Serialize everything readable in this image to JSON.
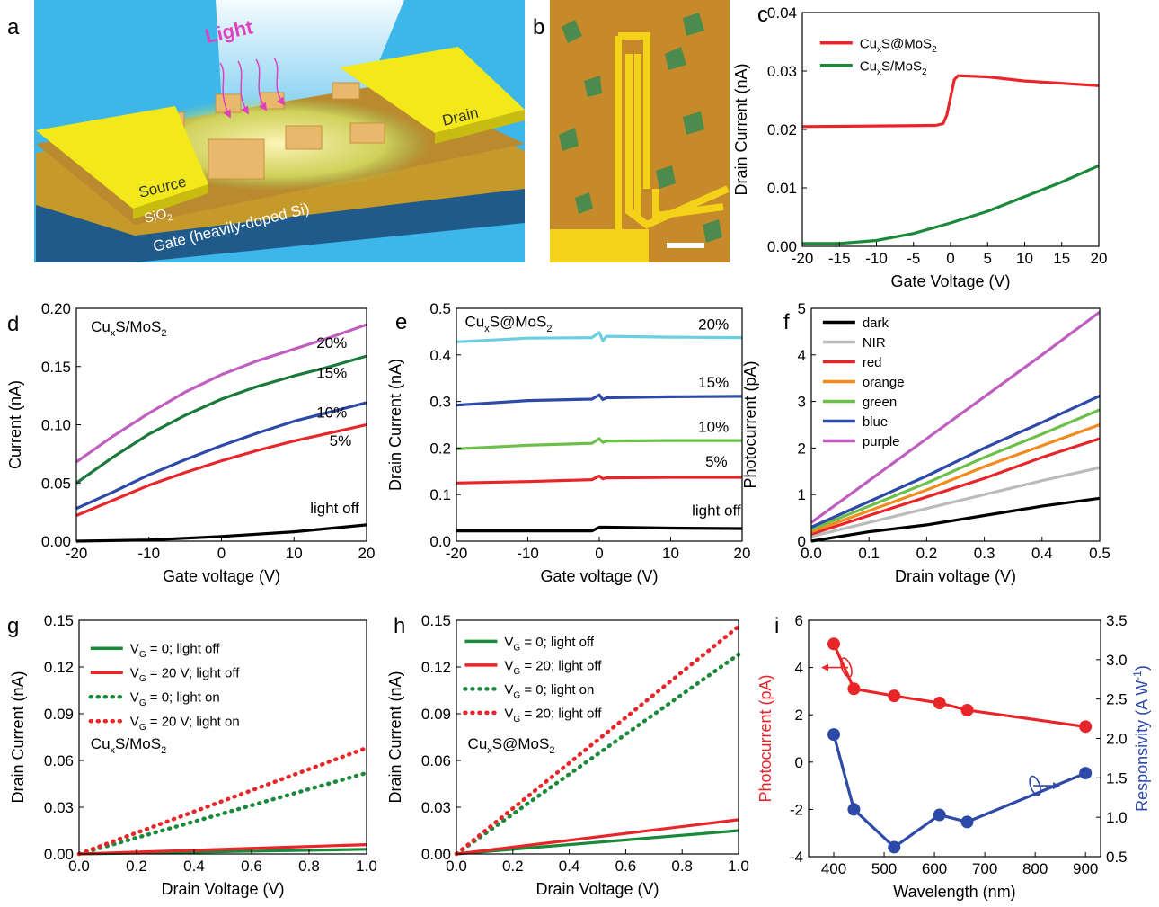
{
  "figure": {
    "panel_letters": [
      "a",
      "b",
      "c",
      "d",
      "e",
      "f",
      "g",
      "h",
      "i"
    ]
  },
  "schematic": {
    "light_label": "Light",
    "source_label": "Source",
    "drain_label": "Drain",
    "oxide_label": "SiO",
    "oxide_sub": "2",
    "gate_label": "Gate (heavily-doped Si)",
    "colors": {
      "sky": "#3db6ea",
      "electrode": "#f2e81a",
      "gate": "#1f5a8a",
      "oxide": "#c59a2a",
      "film": "#d6e86a",
      "light": "#e040c0"
    }
  },
  "micrograph": {
    "colors": {
      "background": "#c68a2a",
      "flake": "#3f8a52",
      "electrode": "#f5d21a"
    }
  },
  "chart_data": [
    {
      "panel": "c",
      "type": "line",
      "xlabel": "Gate Voltage (V)",
      "ylabel": "Drain Current (nA)",
      "xlim": [
        -20,
        20
      ],
      "ylim": [
        0,
        0.04
      ],
      "xticks": [
        -20,
        -15,
        -10,
        -5,
        0,
        5,
        10,
        15,
        20
      ],
      "yticks": [
        0.0,
        0.01,
        0.02,
        0.03,
        0.04
      ],
      "ydec": 2,
      "legend": "top-left",
      "series": [
        {
          "name": "CuxS@MoS2",
          "color": "#e8262a",
          "style": "solid",
          "x": [
            -20,
            -10,
            -2,
            -1,
            -0.5,
            0,
            0.5,
            1,
            5,
            10,
            15,
            20
          ],
          "y": [
            0.0205,
            0.0206,
            0.0207,
            0.021,
            0.0225,
            0.0255,
            0.0285,
            0.0292,
            0.029,
            0.0283,
            0.0279,
            0.0275
          ]
        },
        {
          "name": "CuxS/MoS2",
          "color": "#1a8a3a",
          "style": "solid",
          "x": [
            -20,
            -15,
            -10,
            -5,
            0,
            5,
            10,
            15,
            20
          ],
          "y": [
            0.0005,
            0.0005,
            0.001,
            0.0022,
            0.004,
            0.006,
            0.0085,
            0.011,
            0.0138
          ]
        }
      ]
    },
    {
      "panel": "d",
      "type": "line",
      "xlabel": "Gate voltage (V)",
      "ylabel": "Current (nA)",
      "xlim": [
        -20,
        20
      ],
      "ylim": [
        0,
        0.2
      ],
      "xticks": [
        -20,
        -10,
        0,
        10,
        20
      ],
      "yticks": [
        0.0,
        0.05,
        0.1,
        0.15,
        0.2
      ],
      "ydec": 2,
      "corner_label": "CuxS/MoS2",
      "series": [
        {
          "name": "20%",
          "color": "#c05ec0",
          "style": "solid",
          "x": [
            -20,
            -15,
            -10,
            -5,
            0,
            5,
            10,
            15,
            20
          ],
          "y": [
            0.068,
            0.09,
            0.11,
            0.128,
            0.143,
            0.155,
            0.165,
            0.175,
            0.186
          ]
        },
        {
          "name": "15%",
          "color": "#1a7a3a",
          "style": "solid",
          "x": [
            -20,
            -15,
            -10,
            -5,
            0,
            5,
            10,
            15,
            20
          ],
          "y": [
            0.05,
            0.072,
            0.092,
            0.108,
            0.122,
            0.133,
            0.142,
            0.15,
            0.159
          ]
        },
        {
          "name": "10%",
          "color": "#2e4aa8",
          "style": "solid",
          "x": [
            -20,
            -15,
            -10,
            -5,
            0,
            5,
            10,
            15,
            20
          ],
          "y": [
            0.028,
            0.042,
            0.057,
            0.07,
            0.082,
            0.093,
            0.103,
            0.111,
            0.119
          ]
        },
        {
          "name": "5%",
          "color": "#e8262a",
          "style": "solid",
          "x": [
            -20,
            -15,
            -10,
            -5,
            0,
            5,
            10,
            15,
            20
          ],
          "y": [
            0.022,
            0.035,
            0.048,
            0.059,
            0.069,
            0.078,
            0.086,
            0.093,
            0.1
          ]
        },
        {
          "name": "light off",
          "color": "#000000",
          "style": "solid",
          "x": [
            -20,
            -10,
            0,
            10,
            20
          ],
          "y": [
            0.0,
            0.001,
            0.004,
            0.008,
            0.014
          ]
        }
      ]
    },
    {
      "panel": "e",
      "type": "line",
      "xlabel": "Gate voltage (V)",
      "ylabel": "Drain Current (nA)",
      "xlim": [
        -20,
        20
      ],
      "ylim": [
        0,
        0.5
      ],
      "xticks": [
        -20,
        -10,
        0,
        10,
        20
      ],
      "yticks": [
        0.0,
        0.1,
        0.2,
        0.3,
        0.4,
        0.5
      ],
      "ydec": 1,
      "corner_label": "CuxS@MoS2",
      "series": [
        {
          "name": "20%",
          "color": "#6ccfe0",
          "style": "solid",
          "x": [
            -20,
            -10,
            -1,
            0,
            0.5,
            1,
            10,
            20
          ],
          "y": [
            0.428,
            0.436,
            0.437,
            0.448,
            0.43,
            0.44,
            0.438,
            0.437
          ]
        },
        {
          "name": "15%",
          "color": "#2e4aa8",
          "style": "solid",
          "x": [
            -20,
            -10,
            -1,
            0,
            0.5,
            1,
            10,
            20
          ],
          "y": [
            0.292,
            0.302,
            0.305,
            0.314,
            0.304,
            0.308,
            0.31,
            0.311
          ]
        },
        {
          "name": "10%",
          "color": "#6cc04a",
          "style": "solid",
          "x": [
            -20,
            -10,
            -1,
            0,
            0.5,
            1,
            10,
            20
          ],
          "y": [
            0.198,
            0.206,
            0.21,
            0.22,
            0.212,
            0.215,
            0.216,
            0.216
          ]
        },
        {
          "name": "5%",
          "color": "#e8262a",
          "style": "solid",
          "x": [
            -20,
            -10,
            -1,
            0,
            0.5,
            1,
            10,
            20
          ],
          "y": [
            0.125,
            0.128,
            0.132,
            0.14,
            0.134,
            0.136,
            0.137,
            0.137
          ]
        },
        {
          "name": "light off",
          "color": "#000000",
          "style": "solid",
          "x": [
            -20,
            -10,
            -1,
            0,
            1,
            10,
            20
          ],
          "y": [
            0.022,
            0.022,
            0.022,
            0.03,
            0.03,
            0.028,
            0.027
          ]
        }
      ]
    },
    {
      "panel": "f",
      "type": "line",
      "xlabel": "Drain voltage (V)",
      "ylabel": "Photocurrent (pA)",
      "xlim": [
        0,
        0.5
      ],
      "ylim": [
        0,
        5
      ],
      "xticks": [
        0.0,
        0.1,
        0.2,
        0.3,
        0.4,
        0.5
      ],
      "xdec": 1,
      "yticks": [
        0,
        1,
        2,
        3,
        4,
        5
      ],
      "ydec": 0,
      "legend": "top-left",
      "series": [
        {
          "name": "dark",
          "color": "#000000",
          "style": "solid",
          "x": [
            0,
            0.1,
            0.2,
            0.3,
            0.4,
            0.5
          ],
          "y": [
            0.0,
            0.2,
            0.35,
            0.55,
            0.75,
            0.92
          ]
        },
        {
          "name": "NIR",
          "color": "#bbbbbb",
          "style": "solid",
          "x": [
            0,
            0.1,
            0.2,
            0.3,
            0.4,
            0.5
          ],
          "y": [
            0.1,
            0.4,
            0.7,
            1.0,
            1.3,
            1.58
          ]
        },
        {
          "name": "red",
          "color": "#e8262a",
          "style": "solid",
          "x": [
            0,
            0.1,
            0.2,
            0.3,
            0.4,
            0.5
          ],
          "y": [
            0.15,
            0.55,
            0.95,
            1.35,
            1.8,
            2.2
          ]
        },
        {
          "name": "orange",
          "color": "#f28a1e",
          "style": "solid",
          "x": [
            0,
            0.1,
            0.2,
            0.3,
            0.4,
            0.5
          ],
          "y": [
            0.2,
            0.65,
            1.1,
            1.6,
            2.05,
            2.5
          ]
        },
        {
          "name": "green",
          "color": "#6cc04a",
          "style": "solid",
          "x": [
            0,
            0.1,
            0.2,
            0.3,
            0.4,
            0.5
          ],
          "y": [
            0.25,
            0.75,
            1.25,
            1.8,
            2.3,
            2.82
          ]
        },
        {
          "name": "blue",
          "color": "#2e4aa8",
          "style": "solid",
          "x": [
            0,
            0.1,
            0.2,
            0.3,
            0.4,
            0.5
          ],
          "y": [
            0.3,
            0.85,
            1.4,
            2.0,
            2.55,
            3.12
          ]
        },
        {
          "name": "purple",
          "color": "#c05ec0",
          "style": "solid",
          "x": [
            0,
            0.1,
            0.2,
            0.3,
            0.4,
            0.5
          ],
          "y": [
            0.4,
            1.3,
            2.2,
            3.1,
            4.0,
            4.92
          ]
        }
      ]
    },
    {
      "panel": "g",
      "type": "line",
      "xlabel": "Drain Voltage (V)",
      "ylabel": "Drain Current (nA)",
      "xlim": [
        0,
        1
      ],
      "ylim": [
        0,
        0.15
      ],
      "xticks": [
        0.0,
        0.2,
        0.4,
        0.6,
        0.8,
        1.0
      ],
      "xdec": 1,
      "yticks": [
        0.0,
        0.03,
        0.06,
        0.09,
        0.12,
        0.15
      ],
      "ydec": 2,
      "legend": "top-left",
      "corner_label": "CuxS/MoS2",
      "series": [
        {
          "name": "VG = 0; light off",
          "color": "#1a8a3a",
          "style": "solid",
          "x": [
            0,
            1
          ],
          "y": [
            0,
            0.003
          ]
        },
        {
          "name": "VG = 20 V; light off",
          "color": "#e8262a",
          "style": "solid",
          "x": [
            0,
            1
          ],
          "y": [
            0,
            0.006
          ]
        },
        {
          "name": "VG = 0; light on",
          "color": "#1a8a3a",
          "style": "dotted",
          "x": [
            0,
            1
          ],
          "y": [
            0,
            0.052
          ]
        },
        {
          "name": "VG = 20 V; light on",
          "color": "#e8262a",
          "style": "dotted",
          "x": [
            0,
            1
          ],
          "y": [
            0,
            0.068
          ]
        }
      ]
    },
    {
      "panel": "h",
      "type": "line",
      "xlabel": "Drain Voltage (V)",
      "ylabel": "Drain Current (nA)",
      "xlim": [
        0,
        1
      ],
      "ylim": [
        0,
        0.15
      ],
      "xticks": [
        0.0,
        0.2,
        0.4,
        0.6,
        0.8,
        1.0
      ],
      "xdec": 1,
      "yticks": [
        0.0,
        0.03,
        0.06,
        0.09,
        0.12,
        0.15
      ],
      "ydec": 2,
      "legend": "top-left",
      "corner_label": "CuxS@MoS2",
      "series": [
        {
          "name": "VG = 0; light off",
          "color": "#1a8a3a",
          "style": "solid",
          "x": [
            0,
            1
          ],
          "y": [
            0,
            0.015
          ]
        },
        {
          "name": "VG = 20; light off",
          "color": "#e8262a",
          "style": "solid",
          "x": [
            0,
            1
          ],
          "y": [
            0,
            0.022
          ]
        },
        {
          "name": "VG = 0; light on",
          "color": "#1a8a3a",
          "style": "dotted",
          "x": [
            0,
            1
          ],
          "y": [
            0,
            0.128
          ]
        },
        {
          "name": "VG = 20; light off",
          "color": "#e8262a",
          "style": "dotted",
          "x": [
            0,
            1
          ],
          "y": [
            0,
            0.146
          ]
        }
      ]
    },
    {
      "panel": "i",
      "type": "line",
      "xlabel": "Wavelength (nm)",
      "ylabel": "Photocurrent (pA)",
      "ylabel_color": "#e8262a",
      "y2label": "Responsivity (A W-1)",
      "y2label_color": "#2e4aa8",
      "xlim": [
        350,
        930
      ],
      "ylim": [
        -4,
        6
      ],
      "y2lim": [
        0.5,
        3.5
      ],
      "xticks": [
        400,
        500,
        600,
        700,
        800,
        900
      ],
      "xdec": 0,
      "yticks": [
        -4,
        -2,
        0,
        2,
        4,
        6
      ],
      "ydec": 0,
      "y2ticks": [
        0.5,
        1.0,
        1.5,
        2.0,
        2.5,
        3.0,
        3.5
      ],
      "y2dec": 1,
      "series": [
        {
          "name": "Photocurrent",
          "axis": "left",
          "color": "#e8262a",
          "style": "solid",
          "markers": true,
          "x": [
            400,
            440,
            520,
            610,
            665,
            900
          ],
          "y": [
            5.0,
            3.1,
            2.8,
            2.5,
            2.2,
            1.5
          ]
        },
        {
          "name": "Responsivity",
          "axis": "right",
          "color": "#2e4aa8",
          "style": "solid",
          "markers": true,
          "x": [
            400,
            440,
            520,
            610,
            665,
            900
          ],
          "y": [
            2.05,
            1.1,
            0.62,
            1.03,
            0.94,
            1.56
          ]
        }
      ]
    }
  ]
}
